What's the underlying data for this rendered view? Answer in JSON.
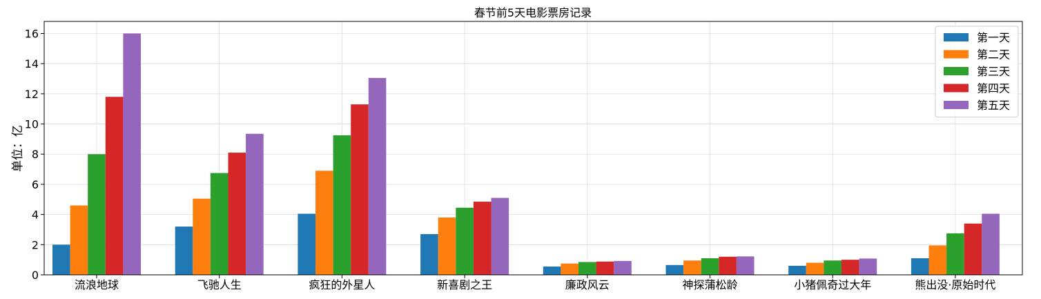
{
  "chart_data": {
    "type": "bar",
    "title": "春节前5天电影票房记录",
    "xlabel": "",
    "ylabel": "单位：亿",
    "ylim": [
      0,
      16.8
    ],
    "yticks": [
      0,
      2,
      4,
      6,
      8,
      10,
      12,
      14,
      16
    ],
    "grid": true,
    "legend_position": "top-right",
    "categories": [
      "流浪地球",
      "飞驰人生",
      "疯狂的外星人",
      "新喜剧之王",
      "廉政风云",
      "神探蒲松龄",
      "小猪佩奇过大年",
      "熊出没·原始时代"
    ],
    "series": [
      {
        "name": "第一天",
        "color": "#1f77b4",
        "values": [
          2.0,
          3.2,
          4.05,
          2.7,
          0.55,
          0.65,
          0.6,
          1.1
        ]
      },
      {
        "name": "第二天",
        "color": "#ff7f0e",
        "values": [
          4.6,
          5.05,
          6.9,
          3.8,
          0.75,
          0.95,
          0.8,
          1.95
        ]
      },
      {
        "name": "第三天",
        "color": "#2ca02c",
        "values": [
          8.0,
          6.75,
          9.25,
          4.45,
          0.85,
          1.1,
          0.95,
          2.75
        ]
      },
      {
        "name": "第四天",
        "color": "#d62728",
        "values": [
          11.8,
          8.1,
          11.3,
          4.85,
          0.88,
          1.2,
          1.0,
          3.4
        ]
      },
      {
        "name": "第五天",
        "color": "#9467bd",
        "values": [
          16.0,
          9.35,
          13.05,
          5.1,
          0.92,
          1.22,
          1.08,
          4.05
        ]
      }
    ]
  }
}
